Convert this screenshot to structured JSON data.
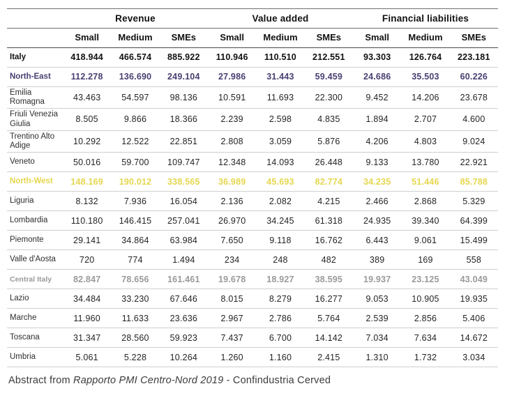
{
  "header": {
    "groups": [
      {
        "label": "Revenue"
      },
      {
        "label": "Value added"
      },
      {
        "label": "Financial liabilities"
      }
    ],
    "columns": [
      "Small",
      "Medium",
      "SMEs",
      "Small",
      "Medium",
      "SMEs",
      "Small",
      "Medium",
      "SMEs"
    ]
  },
  "rows": [
    {
      "label": "Italy",
      "style": "country",
      "values": [
        "418.944",
        "466.574",
        "885.922",
        "110.946",
        "110.510",
        "212.551",
        "93.303",
        "126.764",
        "223.181"
      ]
    },
    {
      "label": "North-East",
      "style": "northeast",
      "values": [
        "112.278",
        "136.690",
        "249.104",
        "27.986",
        "31.443",
        "59.459",
        "24.686",
        "35.503",
        "60.226"
      ]
    },
    {
      "label": "Emilia Romagna",
      "style": "",
      "values": [
        "43.463",
        "54.597",
        "98.136",
        "10.591",
        "11.693",
        "22.300",
        "9.452",
        "14.206",
        "23.678"
      ]
    },
    {
      "label": "Friuli Venezia Giulia",
      "style": "",
      "values": [
        "8.505",
        "9.866",
        "18.366",
        "2.239",
        "2.598",
        "4.835",
        "1.894",
        "2.707",
        "4.600"
      ]
    },
    {
      "label": "Trentino Alto Adige",
      "style": "",
      "values": [
        "10.292",
        "12.522",
        "22.851",
        "2.808",
        "3.059",
        "5.876",
        "4.206",
        "4.803",
        "9.024"
      ]
    },
    {
      "label": "Veneto",
      "style": "",
      "values": [
        "50.016",
        "59.700",
        "109.747",
        "12.348",
        "14.093",
        "26.448",
        "9.133",
        "13.780",
        "22.921"
      ]
    },
    {
      "label": "North-West",
      "style": "northwest",
      "values": [
        "148.169",
        "190.012",
        "338.565",
        "36.989",
        "45.693",
        "82.774",
        "34.235",
        "51.446",
        "85.788"
      ]
    },
    {
      "label": "Liguria",
      "style": "",
      "values": [
        "8.132",
        "7.936",
        "16.054",
        "2.136",
        "2.082",
        "4.215",
        "2.466",
        "2.868",
        "5.329"
      ]
    },
    {
      "label": "Lombardia",
      "style": "",
      "values": [
        "110.180",
        "146.415",
        "257.041",
        "26.970",
        "34.245",
        "61.318",
        "24.935",
        "39.340",
        "64.399"
      ]
    },
    {
      "label": "Piemonte",
      "style": "",
      "values": [
        "29.141",
        "34.864",
        "63.984",
        "7.650",
        "9.118",
        "16.762",
        "6.443",
        "9.061",
        "15.499"
      ]
    },
    {
      "label": "Valle d'Aosta",
      "style": "",
      "values": [
        "720",
        "774",
        "1.494",
        "234",
        "248",
        "482",
        "389",
        "169",
        "558"
      ]
    },
    {
      "label": "Central Italy",
      "style": "central",
      "values": [
        "82.847",
        "78.656",
        "161.461",
        "19.678",
        "18.927",
        "38.595",
        "19.937",
        "23.125",
        "43.049"
      ]
    },
    {
      "label": "Lazio",
      "style": "",
      "values": [
        "34.484",
        "33.230",
        "67.646",
        "8.015",
        "8.279",
        "16.277",
        "9.053",
        "10.905",
        "19.935"
      ]
    },
    {
      "label": "Marche",
      "style": "",
      "values": [
        "11.960",
        "11.633",
        "23.636",
        "2.967",
        "2.786",
        "5.764",
        "2.539",
        "2.856",
        "5.406"
      ]
    },
    {
      "label": "Toscana",
      "style": "",
      "values": [
        "31.347",
        "28.560",
        "59.923",
        "7.437",
        "6.700",
        "14.142",
        "7.034",
        "7.634",
        "14.672"
      ]
    },
    {
      "label": "Umbria",
      "style": "",
      "values": [
        "5.061",
        "5.228",
        "10.264",
        "1.260",
        "1.160",
        "2.415",
        "1.310",
        "1.732",
        "3.034"
      ]
    }
  ],
  "footer": {
    "prefix": "Abstract from ",
    "source_title": "Rapporto PMI Centro-Nord 2019",
    "suffix": " - Confindustria Cerved"
  },
  "colors": {
    "north_east": "#4a3f72",
    "north_west": "#e5d74f",
    "central_italy": "#9a9a9a",
    "header_text": "#111111",
    "row_border": "#cfcfcf",
    "header_border": "#4a4a4a"
  }
}
